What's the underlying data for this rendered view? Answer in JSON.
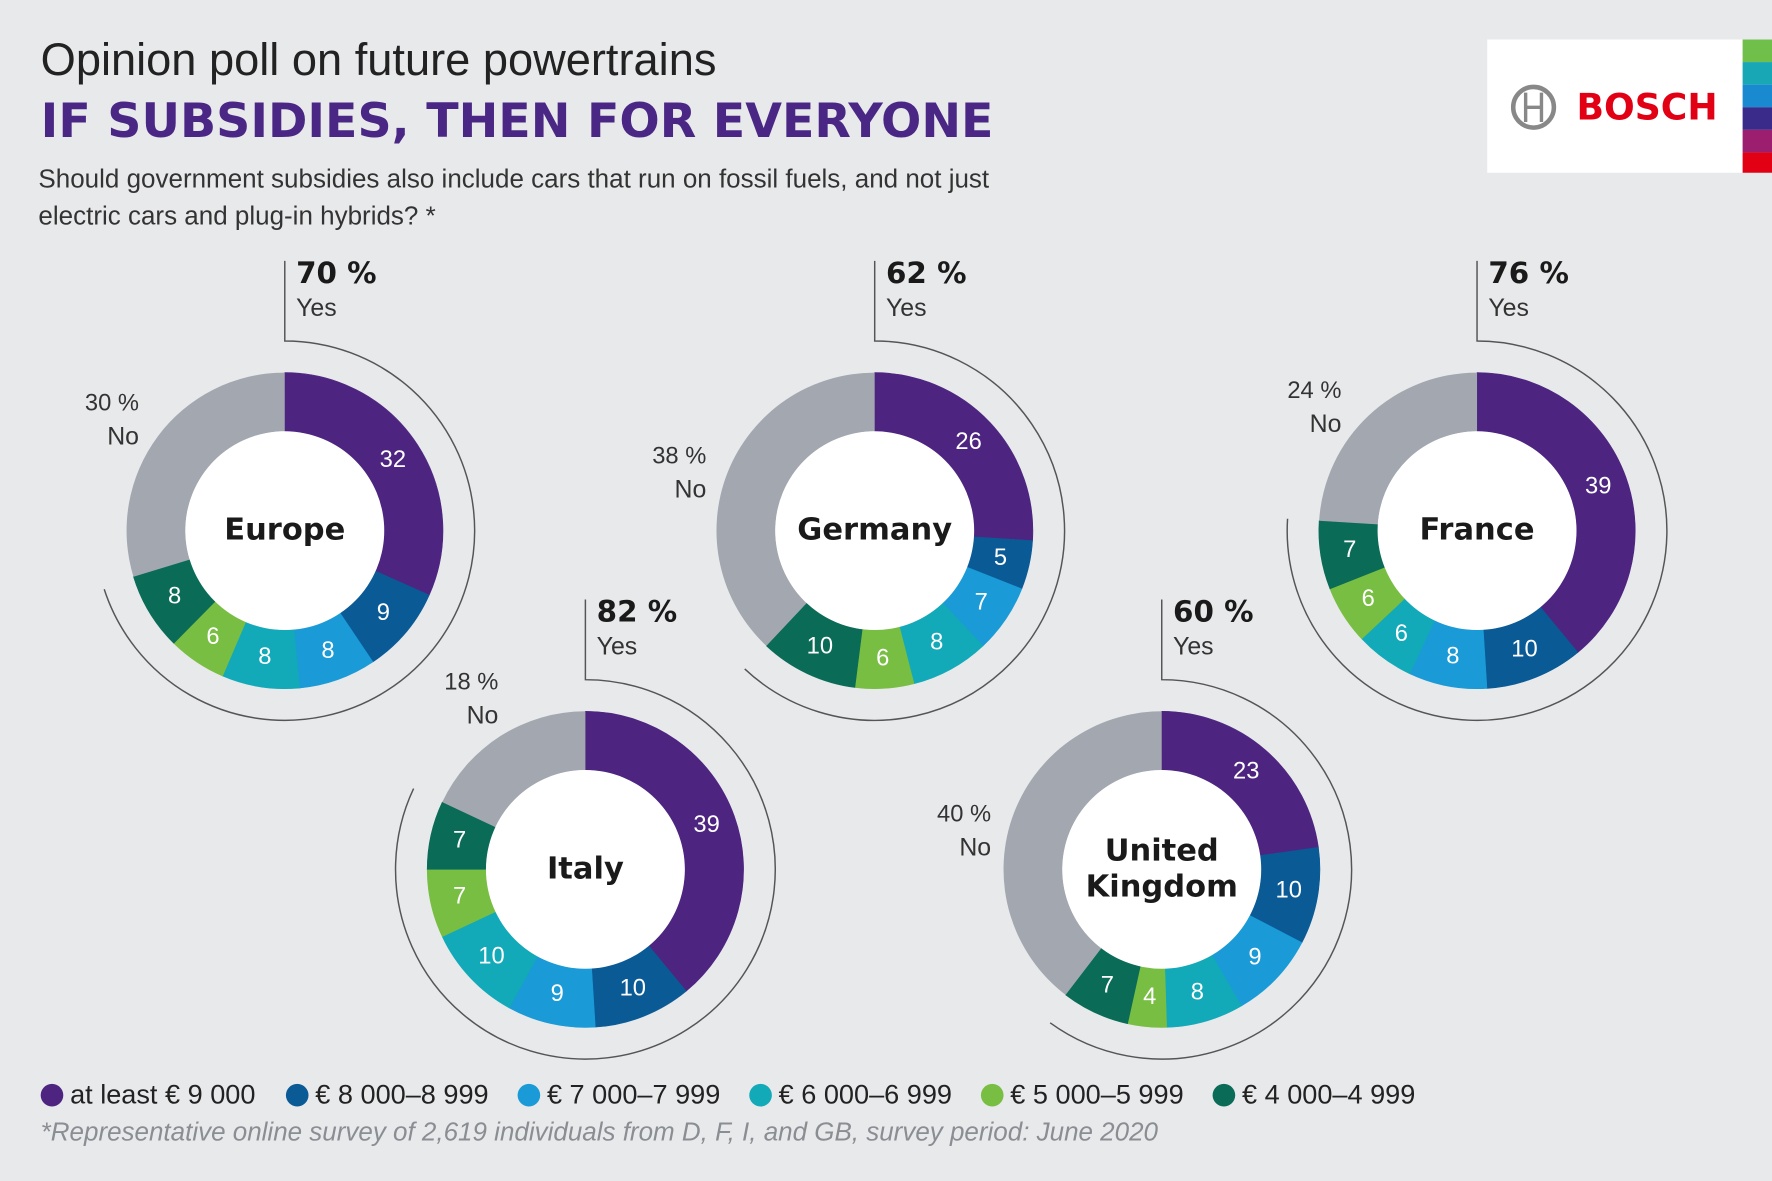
{
  "header": {
    "title": "Opinion poll on future powertrains",
    "headline": "IF SUBSIDIES, THEN FOR EVERYONE",
    "question": "Should government subsidies also include cars that run on fossil fuels, and not just electric cars and plug-in hybrids? *",
    "logo": "BOSCH"
  },
  "legend": {
    "categories": [
      "at least € 9 000",
      "€ 8 000–8 999",
      "€ 7 000–7 999",
      "€ 6 000–6 999",
      "€ 5 000–5 999",
      "€ 4 000–4 999"
    ],
    "colors": [
      "#4d2580",
      "#0a5a96",
      "#1a9ad6",
      "#12a9b9",
      "#78be43",
      "#0a6b57"
    ],
    "no_color": "#a2a7b0"
  },
  "chart_data": [
    {
      "type": "pie",
      "title": "Europe",
      "values": [
        32,
        9,
        8,
        8,
        6,
        8
      ],
      "yes": {
        "value": 70,
        "label": "70 %",
        "text": "Yes"
      },
      "no": {
        "value": 30,
        "label": "30 %",
        "text": "No"
      }
    },
    {
      "type": "pie",
      "title": "Germany",
      "values": [
        26,
        5,
        7,
        8,
        6,
        10
      ],
      "yes": {
        "value": 62,
        "label": "62 %",
        "text": "Yes"
      },
      "no": {
        "value": 38,
        "label": "38 %",
        "text": "No"
      }
    },
    {
      "type": "pie",
      "title": "France",
      "values": [
        39,
        10,
        8,
        6,
        6,
        7
      ],
      "yes": {
        "value": 76,
        "label": "76 %",
        "text": "Yes"
      },
      "no": {
        "value": 24,
        "label": "24 %",
        "text": "No"
      }
    },
    {
      "type": "pie",
      "title": "Italy",
      "values": [
        39,
        10,
        9,
        10,
        7,
        7
      ],
      "yes": {
        "value": 82,
        "label": "82 %",
        "text": "Yes"
      },
      "no": {
        "value": 18,
        "label": "18 %",
        "text": "No"
      }
    },
    {
      "type": "pie",
      "title": "United Kingdom",
      "values": [
        23,
        10,
        9,
        8,
        4,
        7
      ],
      "yes": {
        "value": 60,
        "label": "60 %",
        "text": "Yes"
      },
      "no": {
        "value": 40,
        "label": "40 %",
        "text": "No"
      }
    }
  ],
  "footnote": "*Representative online survey of 2,619 individuals from D, F, I, and GB, survey period: June 2020"
}
